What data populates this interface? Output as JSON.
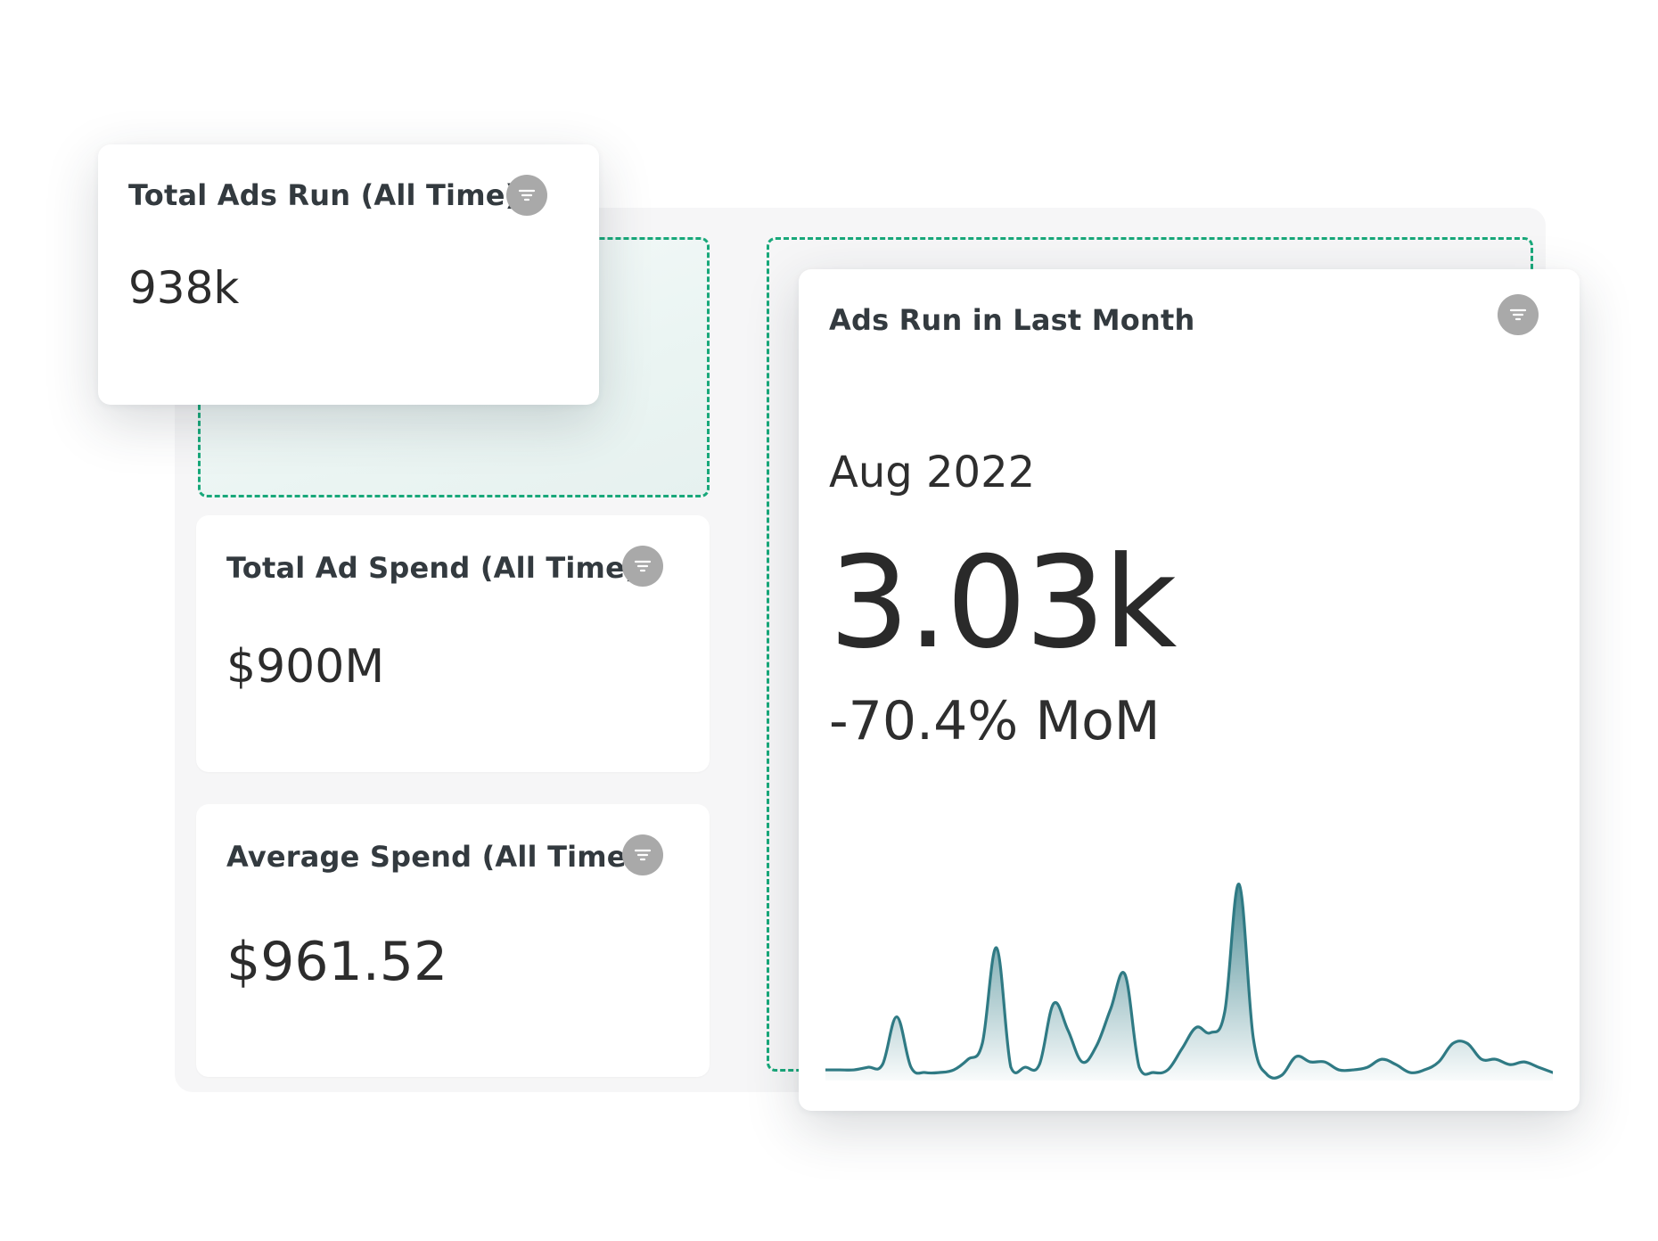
{
  "cards": {
    "total_ads": {
      "title": "Total Ads Run (All Time)",
      "value": "938k"
    },
    "ad_spend": {
      "title": "Total Ad Spend (All Time)",
      "value": "$900M"
    },
    "avg_spend": {
      "title": "Average Spend (All Time)",
      "value": "$961.52"
    },
    "last_month": {
      "title": "Ads Run in Last Month",
      "period": "Aug 2022",
      "value": "3.03k",
      "change": "-70.4% MoM"
    }
  },
  "icons": {
    "filter": "filter-icon"
  },
  "colors": {
    "accent_dashed": "#18a87a",
    "sparkline_stroke": "#2f7a84",
    "filter_button": "#a9a9a9",
    "panel_background": "#f6f6f7"
  },
  "chart_data": {
    "type": "area",
    "values": [
      2,
      2,
      2,
      3,
      4,
      22,
      3,
      1,
      1,
      2,
      6,
      12,
      48,
      3,
      3,
      4,
      27,
      17,
      5,
      11,
      25,
      38,
      3,
      1,
      2,
      10,
      18,
      16,
      24,
      72,
      14,
      0,
      0,
      7,
      5,
      5,
      2,
      2,
      3,
      6,
      4,
      1,
      2,
      5,
      12,
      12,
      6,
      6,
      4,
      5,
      3,
      1
    ],
    "ylim": [
      0,
      80
    ]
  }
}
